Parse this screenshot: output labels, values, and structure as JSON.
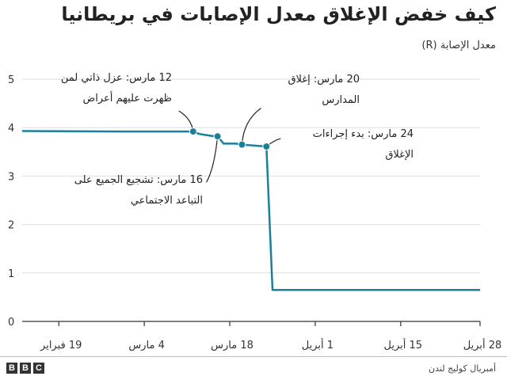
{
  "title": "كيف خفض الإغلاق معدل الإصابات في بريطانيا",
  "subtitle": "معدل الإصابة (R)",
  "source": "أمبريال كوليج لندن",
  "logo": [
    "B",
    "B",
    "C"
  ],
  "colors": {
    "line": "#1a7f99",
    "grid": "#dddddd",
    "axis": "#333333"
  },
  "annotations": {
    "a1_line1": "12 مارس: عزل ذاتي لمن",
    "a1_line2": "ظهرت عليهم أعراض",
    "a2_line1": "16 مارس: تشجيع الجميع على",
    "a2_line2": "التباعد الاجتماعي",
    "a3_line1": "20 مارس: إغلاق",
    "a3_line2": "المدارس",
    "a4_line1": "24 مارس: بدء إجراءات",
    "a4_line2": "الإغلاق"
  },
  "chart_data": {
    "type": "line",
    "title": "كيف خفض الإغلاق معدل الإصابات في بريطانيا",
    "ylabel": "معدل الإصابة (R)",
    "ylim": [
      0,
      5
    ],
    "yticks": [
      0,
      1,
      2,
      3,
      4,
      5
    ],
    "xlim": [
      "2020-02-13",
      "2020-04-28"
    ],
    "xticks": [
      {
        "date": "2020-02-19",
        "label": "19 فبراير"
      },
      {
        "date": "2020-03-04",
        "label": "4 مارس"
      },
      {
        "date": "2020-03-18",
        "label": "18 مارس"
      },
      {
        "date": "2020-04-01",
        "label": "1 أبريل"
      },
      {
        "date": "2020-04-15",
        "label": "15 أبريل"
      },
      {
        "date": "2020-04-28",
        "label": "28 أبريل"
      }
    ],
    "grid": true,
    "series": [
      {
        "x": [
          "2020-02-13",
          "2020-03-01",
          "2020-03-12",
          "2020-03-13",
          "2020-03-15",
          "2020-03-16",
          "2020-03-17",
          "2020-03-19",
          "2020-03-20",
          "2020-03-23",
          "2020-03-24",
          "2020-03-25",
          "2020-04-28"
        ],
        "y": [
          3.93,
          3.92,
          3.92,
          3.87,
          3.83,
          3.82,
          3.67,
          3.67,
          3.65,
          3.62,
          3.61,
          0.65,
          0.65
        ]
      }
    ],
    "events": [
      {
        "date": "2020-03-12",
        "value": 3.92
      },
      {
        "date": "2020-03-16",
        "value": 3.82
      },
      {
        "date": "2020-03-20",
        "value": 3.65
      },
      {
        "date": "2020-03-24",
        "value": 3.61
      }
    ]
  }
}
